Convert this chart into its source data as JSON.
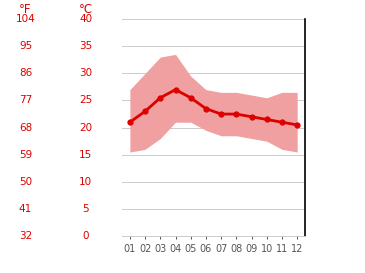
{
  "months": [
    1,
    2,
    3,
    4,
    5,
    6,
    7,
    8,
    9,
    10,
    11,
    12
  ],
  "month_labels": [
    "01",
    "02",
    "03",
    "04",
    "05",
    "06",
    "07",
    "08",
    "09",
    "10",
    "11",
    "12"
  ],
  "mean_temp": [
    21.0,
    23.0,
    25.5,
    27.0,
    25.5,
    23.5,
    22.5,
    22.5,
    22.0,
    21.5,
    21.0,
    20.5
  ],
  "max_temp": [
    27.0,
    30.0,
    33.0,
    33.5,
    29.5,
    27.0,
    26.5,
    26.5,
    26.0,
    25.5,
    26.5,
    26.5
  ],
  "min_temp": [
    15.5,
    16.0,
    18.0,
    21.0,
    21.0,
    19.5,
    18.5,
    18.5,
    18.0,
    17.5,
    16.0,
    15.5
  ],
  "line_color": "#dd0000",
  "fill_color": "#f0a0a0",
  "bg_color": "#ffffff",
  "grid_color": "#cccccc",
  "axis_color": "#000000",
  "label_color": "#dd0000",
  "tick_label_color": "#555555",
  "ylim_min": 0,
  "ylim_max": 40,
  "yticks_c": [
    0,
    5,
    10,
    15,
    20,
    25,
    30,
    35,
    40
  ],
  "yticks_f": [
    32,
    41,
    50,
    59,
    68,
    77,
    86,
    95,
    104
  ],
  "ylabel_left": "°F",
  "ylabel_right": "°C",
  "label_fontsize": 8.5,
  "tick_fontsize": 7.5,
  "xtick_fontsize": 7.0
}
